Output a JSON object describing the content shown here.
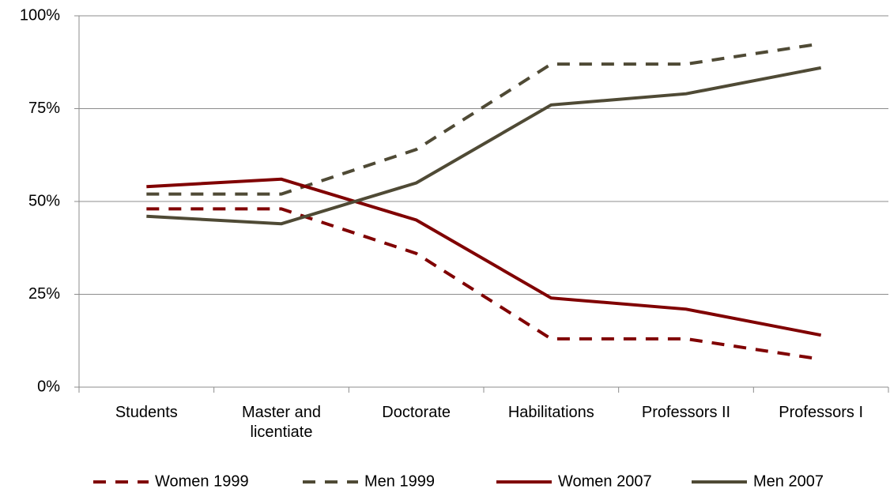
{
  "chart_data": {
    "type": "line",
    "categories": [
      "Students",
      "Master and licentiate",
      "Doctorate",
      "Habilitations",
      "Professors II",
      "Professors I"
    ],
    "series": [
      {
        "name": "Women 1999",
        "color": "#800000",
        "style": "dashed",
        "values": [
          48,
          48,
          36,
          13,
          13,
          7.5
        ]
      },
      {
        "name": "Men 1999",
        "color": "#4f4a35",
        "style": "dashed",
        "values": [
          52,
          52,
          64,
          87,
          87,
          92.5
        ]
      },
      {
        "name": "Women 2007",
        "color": "#800000",
        "style": "solid",
        "values": [
          54,
          56,
          45,
          24,
          21,
          14
        ]
      },
      {
        "name": "Men 2007",
        "color": "#4f4a35",
        "style": "solid",
        "values": [
          46,
          44,
          55,
          76,
          79,
          86
        ]
      }
    ],
    "ylim": [
      0,
      100
    ],
    "yticks": [
      {
        "value": 0,
        "label": "0%"
      },
      {
        "value": 25,
        "label": "25%"
      },
      {
        "value": 50,
        "label": "50%"
      },
      {
        "value": 75,
        "label": "75%"
      },
      {
        "value": 100,
        "label": "100%"
      }
    ],
    "grid": true,
    "legend": "bottom"
  }
}
